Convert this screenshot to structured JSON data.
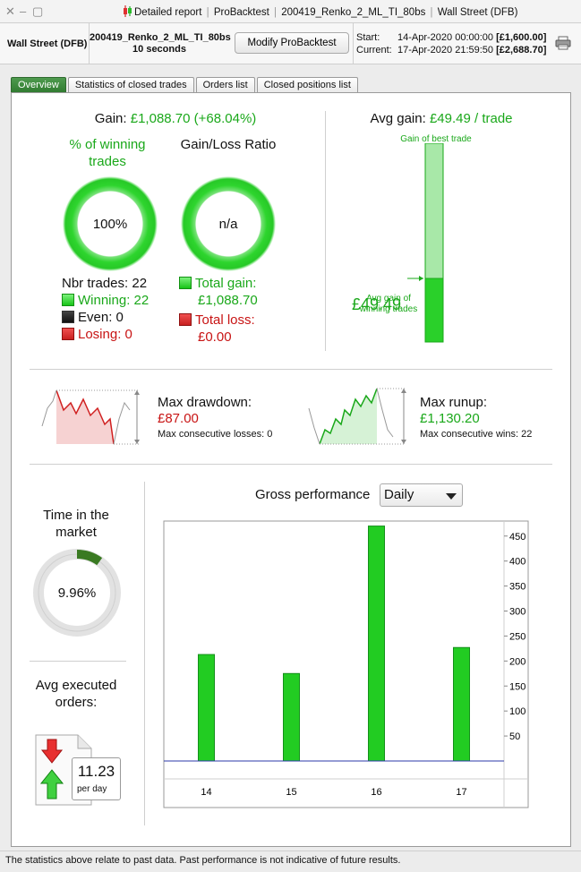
{
  "titlebar": {
    "close_glyph": "✕",
    "minimize_glyph": "–",
    "maximize_glyph": "▢",
    "items": [
      "Detailed report",
      "ProBacktest",
      "200419_Renko_2_ML_TI_80bs",
      "Wall Street (DFB)"
    ]
  },
  "header": {
    "instrument": "Wall Street (DFB)",
    "system_name": "200419_Renko_2_ML_TI_80bs",
    "duration": "10 seconds",
    "modify_label": "Modify ProBacktest",
    "start_label": "Start:",
    "start_date": "14-Apr-2020 00:00:00",
    "start_value": "[£1,600.00]",
    "current_label": "Current:",
    "current_date": "17-Apr-2020 21:59:50",
    "current_value": "[£2,688.70]"
  },
  "tabs": [
    {
      "label": "Overview",
      "active": true
    },
    {
      "label": "Statistics of closed trades",
      "active": false
    },
    {
      "label": "Orders list",
      "active": false
    },
    {
      "label": "Closed positions list",
      "active": false
    }
  ],
  "overview": {
    "gain_label": "Gain:",
    "gain_value": "£1,088.70 (+68.04%)",
    "winning_pct_title": "% of winning trades",
    "winning_pct_value": "100%",
    "gain_loss_title": "Gain/Loss Ratio",
    "gain_loss_value": "n/a",
    "nbr_trades": "Nbr trades: 22",
    "winning": "Winning: 22",
    "even": "Even: 0",
    "losing": "Losing: 0",
    "total_gain_label": "Total gain:",
    "total_gain_value": "£1,088.70",
    "total_loss_label": "Total loss:",
    "total_loss_value": "£0.00",
    "avg_gain_label": "Avg gain:",
    "avg_gain_value": "£49.49 / trade",
    "best_trade_label": "Gain of best trade",
    "avg_gain_big": "£49.49",
    "avg_gain_small": "Avg gain of winning trades",
    "avg_to_best_ratio": 0.32,
    "colors": {
      "green": "#1aa81a",
      "red": "#c81414"
    }
  },
  "drawdown": {
    "title": "Max drawdown:",
    "value": "£87.00",
    "sub": "Max consecutive losses: 0"
  },
  "runup": {
    "title": "Max runup:",
    "value": "£1,130.20",
    "sub": "Max consecutive wins: 22"
  },
  "time_in_market": {
    "title": "Time in the market",
    "value": "9.96%",
    "fraction": 0.0996
  },
  "avg_orders": {
    "title": "Avg executed orders:",
    "value": "11.23",
    "unit": "per day"
  },
  "gross_performance": {
    "title": "Gross performance",
    "period": "Daily"
  },
  "chart_data": {
    "type": "bar",
    "categories": [
      "14",
      "15",
      "16",
      "17"
    ],
    "values": [
      213,
      175,
      470,
      227
    ],
    "ylim": [
      0,
      480
    ],
    "yticks": [
      50,
      100,
      150,
      200,
      250,
      300,
      350,
      400,
      450
    ],
    "bar_color": "#22cc22",
    "baseline_color": "#2b3aa8"
  },
  "footer": {
    "disclaimer": "The statistics above relate to past data. Past performance is not indicative of future results."
  }
}
